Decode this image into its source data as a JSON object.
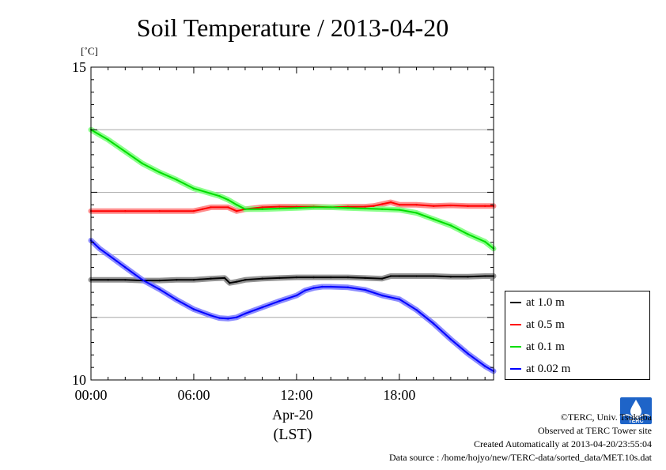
{
  "chart_data": {
    "type": "line",
    "title": "Soil Temperature / 2013-04-20",
    "ylabel": "[˚C]",
    "ylim": [
      10,
      15
    ],
    "xlim": [
      0,
      23.5
    ],
    "ytick_labels": [
      "10",
      "15"
    ],
    "xtick_labels": [
      {
        "x": 0,
        "label": "00:00"
      },
      {
        "x": 6,
        "label": "06:00"
      },
      {
        "x": 12,
        "label": "12:00"
      },
      {
        "x": 18,
        "label": "18:00"
      }
    ],
    "xlabel_date": "Apr-20",
    "xlabel_unit": "(LST)",
    "grid": true,
    "legend_position": "right",
    "series": [
      {
        "name": "at 1.0 m",
        "color": "#000000",
        "band_color": "#888888",
        "x": [
          0,
          1,
          2,
          3,
          4,
          5,
          6,
          7,
          7.8,
          8.1,
          8.5,
          9,
          10,
          11,
          12,
          13,
          14,
          15,
          16,
          17,
          17.5,
          18,
          19,
          20,
          21,
          22,
          23,
          23.5
        ],
        "y": [
          11.6,
          11.6,
          11.6,
          11.59,
          11.59,
          11.6,
          11.6,
          11.62,
          11.63,
          11.55,
          11.57,
          11.6,
          11.62,
          11.63,
          11.64,
          11.64,
          11.64,
          11.64,
          11.63,
          11.62,
          11.66,
          11.66,
          11.66,
          11.66,
          11.65,
          11.65,
          11.66,
          11.66
        ]
      },
      {
        "name": "at 0.5 m",
        "color": "#ff0000",
        "band_color": "#ff8080",
        "x": [
          0,
          2,
          4,
          6,
          6.5,
          7,
          8,
          8.5,
          9,
          10,
          11,
          12,
          13,
          14,
          15,
          16,
          16.5,
          17,
          17.5,
          18,
          19,
          20,
          21,
          22,
          23,
          23.5
        ],
        "y": [
          12.7,
          12.7,
          12.7,
          12.7,
          12.73,
          12.76,
          12.76,
          12.7,
          12.73,
          12.76,
          12.77,
          12.77,
          12.77,
          12.76,
          12.77,
          12.77,
          12.78,
          12.81,
          12.84,
          12.8,
          12.8,
          12.78,
          12.79,
          12.78,
          12.78,
          12.78
        ]
      },
      {
        "name": "at 0.1 m",
        "color": "#00dd00",
        "band_color": "#80ff80",
        "x": [
          0,
          1,
          2,
          3,
          4,
          5,
          6,
          7,
          7.5,
          8,
          8.5,
          9,
          10,
          11,
          12,
          13,
          14,
          15,
          16,
          17,
          18,
          19,
          20,
          21,
          22,
          23,
          23.5
        ],
        "y": [
          14.0,
          13.84,
          13.65,
          13.46,
          13.32,
          13.2,
          13.06,
          12.98,
          12.94,
          12.88,
          12.8,
          12.73,
          12.73,
          12.74,
          12.75,
          12.76,
          12.76,
          12.75,
          12.74,
          12.73,
          12.72,
          12.67,
          12.57,
          12.47,
          12.33,
          12.21,
          12.1
        ]
      },
      {
        "name": "at 0.02 m",
        "color": "#0000ff",
        "band_color": "#8080ff",
        "x": [
          0,
          0.5,
          1,
          1.5,
          2,
          3,
          4,
          5,
          6,
          7,
          7.5,
          8,
          8.5,
          9,
          10,
          11,
          12,
          12.5,
          13,
          13.5,
          14,
          15,
          16,
          17,
          18,
          19,
          20,
          21,
          22,
          23,
          23.5
        ],
        "y": [
          12.23,
          12.1,
          12.0,
          11.9,
          11.8,
          11.6,
          11.45,
          11.28,
          11.13,
          11.03,
          10.99,
          10.98,
          11.0,
          11.06,
          11.16,
          11.26,
          11.35,
          11.43,
          11.47,
          11.49,
          11.49,
          11.48,
          11.44,
          11.35,
          11.29,
          11.12,
          10.9,
          10.65,
          10.42,
          10.22,
          10.14
        ]
      }
    ]
  },
  "credits": {
    "line1": "©TERC, Univ. Tsukuba",
    "line2": "Observed at TERC Tower site",
    "line3": "Created Automatically at 2013-04-20/23:55:04",
    "line4": "Data source : /home/hojyo/new/TERC-data/sorted_data/MET.10s.dat"
  },
  "logo": {
    "icon": "terc-logo-icon",
    "text": "TERC",
    "color": "#1e64c8"
  }
}
